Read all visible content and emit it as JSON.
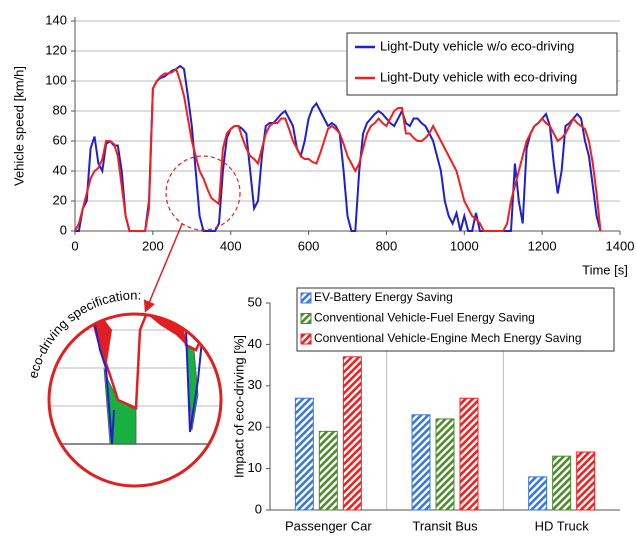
{
  "chart_data": [
    {
      "type": "line",
      "ylabel": "Vehicle speed [km/h]",
      "xlabel": "Time [s]",
      "xlim": [
        0,
        1400
      ],
      "xticks": [
        0,
        200,
        400,
        600,
        800,
        1000,
        1200,
        1400
      ],
      "ylim": [
        0,
        140
      ],
      "yticks": [
        0,
        20,
        40,
        60,
        80,
        100,
        120,
        140
      ],
      "grid": true,
      "legend": "upper right",
      "x": [
        0,
        10,
        20,
        30,
        40,
        50,
        60,
        70,
        80,
        90,
        100,
        110,
        120,
        130,
        140,
        150,
        160,
        170,
        180,
        190,
        200,
        210,
        220,
        230,
        240,
        250,
        260,
        270,
        280,
        290,
        300,
        310,
        320,
        330,
        340,
        350,
        360,
        370,
        380,
        390,
        400,
        410,
        420,
        430,
        440,
        450,
        460,
        470,
        480,
        490,
        500,
        510,
        520,
        530,
        540,
        550,
        560,
        570,
        580,
        590,
        600,
        610,
        620,
        630,
        640,
        650,
        660,
        670,
        680,
        690,
        700,
        710,
        720,
        730,
        740,
        750,
        760,
        770,
        780,
        790,
        800,
        810,
        820,
        830,
        840,
        850,
        860,
        870,
        880,
        890,
        900,
        910,
        920,
        930,
        940,
        950,
        960,
        970,
        980,
        990,
        1000,
        1010,
        1020,
        1030,
        1040,
        1050,
        1060,
        1070,
        1080,
        1090,
        1100,
        1110,
        1120,
        1130,
        1140,
        1150,
        1160,
        1170,
        1180,
        1190,
        1200,
        1210,
        1220,
        1230,
        1240,
        1250,
        1260,
        1270,
        1280,
        1290,
        1300,
        1310,
        1320,
        1330,
        1340,
        1350
      ],
      "series": [
        {
          "name": "Light-Duty vehicle w/o eco-driving",
          "color": "#1f1fd0",
          "values": [
            0,
            0,
            15,
            20,
            55,
            63,
            45,
            40,
            58,
            60,
            57,
            57,
            40,
            10,
            0,
            0,
            0,
            0,
            0,
            20,
            95,
            100,
            102,
            103,
            105,
            107,
            108,
            110,
            108,
            90,
            70,
            40,
            10,
            0,
            0,
            0,
            0,
            5,
            40,
            62,
            68,
            70,
            70,
            68,
            65,
            40,
            15,
            20,
            50,
            70,
            72,
            72,
            75,
            78,
            80,
            75,
            70,
            55,
            50,
            60,
            75,
            82,
            85,
            80,
            75,
            70,
            72,
            70,
            65,
            40,
            10,
            0,
            0,
            40,
            65,
            72,
            75,
            78,
            80,
            78,
            75,
            72,
            70,
            75,
            80,
            72,
            70,
            75,
            75,
            72,
            70,
            65,
            60,
            50,
            40,
            20,
            10,
            5,
            12,
            0,
            10,
            0,
            0,
            12,
            0,
            0,
            0,
            0,
            0,
            0,
            0,
            0,
            0,
            45,
            20,
            5,
            55,
            65,
            70,
            72,
            75,
            78,
            70,
            45,
            25,
            40,
            70,
            72,
            75,
            78,
            75,
            60,
            50,
            30,
            10,
            0
          ]
        },
        {
          "name": "Light-Duty vehicle with eco-driving",
          "color": "#f02020",
          "values": [
            0,
            5,
            15,
            25,
            35,
            40,
            42,
            48,
            60,
            60,
            58,
            50,
            30,
            10,
            0,
            0,
            0,
            0,
            0,
            15,
            95,
            100,
            103,
            105,
            105,
            106,
            108,
            100,
            90,
            75,
            60,
            50,
            40,
            35,
            28,
            22,
            20,
            18,
            55,
            65,
            68,
            70,
            70,
            62,
            55,
            50,
            48,
            45,
            55,
            65,
            70,
            72,
            72,
            75,
            75,
            68,
            60,
            55,
            50,
            48,
            48,
            46,
            45,
            52,
            60,
            68,
            70,
            68,
            65,
            58,
            50,
            45,
            40,
            45,
            55,
            65,
            70,
            72,
            75,
            72,
            70,
            75,
            80,
            82,
            82,
            65,
            65,
            62,
            60,
            60,
            62,
            65,
            70,
            65,
            60,
            55,
            50,
            45,
            40,
            30,
            20,
            15,
            10,
            8,
            5,
            0,
            0,
            0,
            0,
            0,
            0,
            5,
            20,
            30,
            40,
            50,
            60,
            65,
            70,
            72,
            75,
            72,
            70,
            65,
            60,
            62,
            65,
            70,
            75,
            72,
            70,
            68,
            60,
            45,
            25,
            0
          ]
        }
      ]
    },
    {
      "type": "bar",
      "ylabel": "Impact of eco-driving [%]",
      "categories": [
        "Passenger Car",
        "Transit Bus",
        "HD Truck"
      ],
      "ylim": [
        0,
        50
      ],
      "yticks": [
        0,
        10,
        20,
        30,
        40,
        50
      ],
      "legend": "upper right",
      "pattern": "hatched",
      "series": [
        {
          "name": "EV-Battery Energy Saving",
          "color": "#3a78d8",
          "values": [
            27,
            23,
            8
          ]
        },
        {
          "name": "Conventional Vehicle-Fuel Energy Saving",
          "color": "#4e8a2e",
          "values": [
            19,
            22,
            13
          ]
        },
        {
          "name": "Conventional Vehicle-Engine Mech Energy Saving",
          "color": "#f02020",
          "values": [
            37,
            27,
            14
          ]
        }
      ]
    },
    {
      "type": "annotation",
      "text": "eco-driving specification:"
    }
  ]
}
